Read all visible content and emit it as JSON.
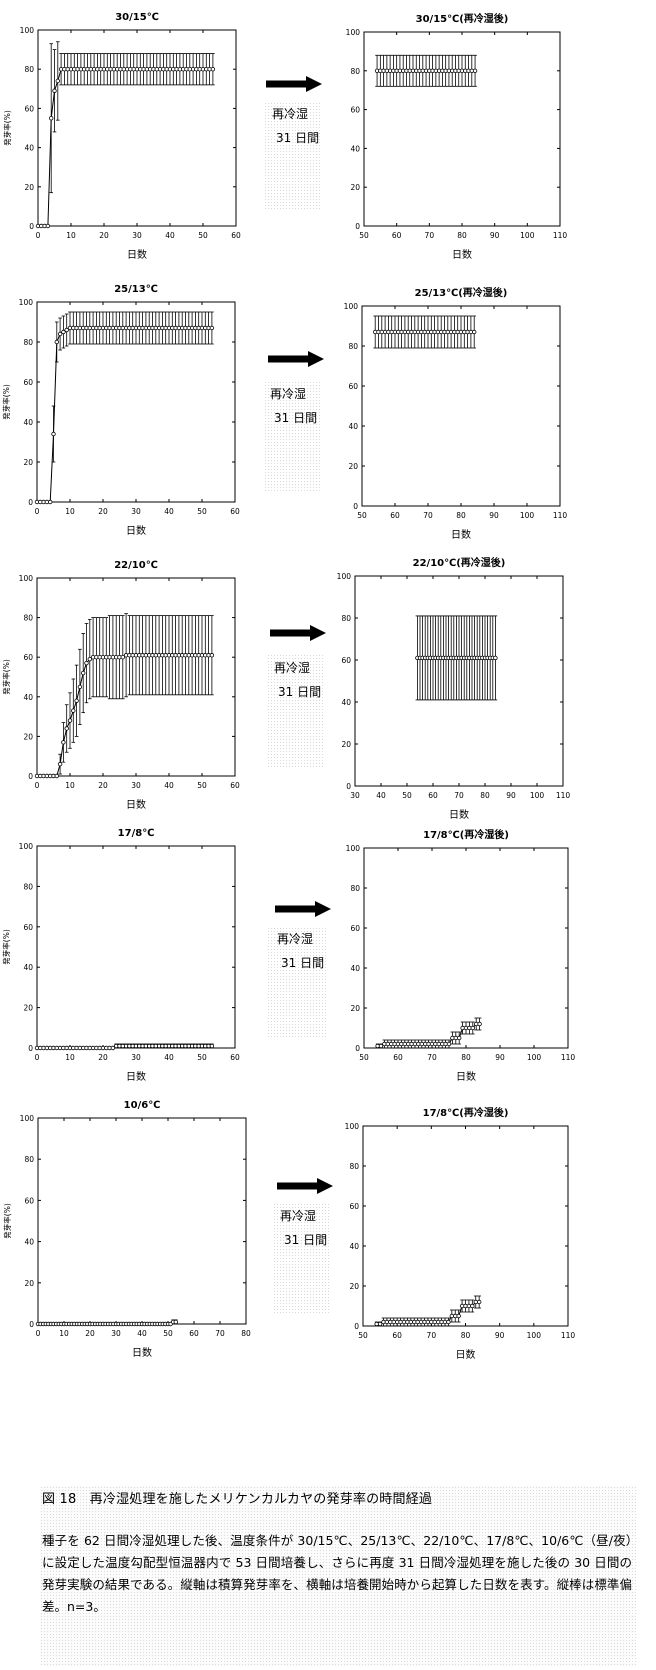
{
  "transition": {
    "label_line1": "再冷湿",
    "label_line2": "31 日間"
  },
  "caption": {
    "title": "図 18　再冷湿処理を施したメリケンカルカヤの発芽率の時間経過",
    "body": "種子を 62 日間冷湿処理した後、温度条件が 30/15℃、25/13℃、22/10℃、17/8℃、10/6℃（昼/夜）に設定した温度勾配型恒温器内で 53 日間培養し、さらに再度 31 日間冷湿処理を施した後の 30 日間の発芽実験の結果である。縦軸は積算発芽率を、横軸は培養開始時から起算した日数を表す。縦棒は標準偏差。n=3。"
  },
  "chart_data": [
    {
      "type": "line",
      "title": "30/15℃",
      "xlabel": "日数",
      "ylabel": "発芽率(%)",
      "xlim": [
        0,
        60
      ],
      "ylim": [
        0,
        100
      ],
      "xticks": [
        0,
        10,
        20,
        30,
        40,
        50,
        60
      ],
      "yticks": [
        0,
        20,
        40,
        60,
        80,
        100
      ],
      "x": [
        0,
        1,
        2,
        3,
        4,
        5,
        6,
        7,
        8,
        9,
        10,
        11,
        12,
        13,
        14,
        15,
        16,
        17,
        18,
        19,
        20,
        21,
        22,
        23,
        24,
        25,
        26,
        27,
        28,
        29,
        30,
        31,
        32,
        33,
        34,
        35,
        36,
        37,
        38,
        39,
        40,
        41,
        42,
        43,
        44,
        45,
        46,
        47,
        48,
        49,
        50,
        51,
        52,
        53
      ],
      "y": [
        0,
        0,
        0,
        0,
        55,
        69,
        74,
        80,
        80,
        80,
        80,
        80,
        80,
        80,
        80,
        80,
        80,
        80,
        80,
        80,
        80,
        80,
        80,
        80,
        80,
        80,
        80,
        80,
        80,
        80,
        80,
        80,
        80,
        80,
        80,
        80,
        80,
        80,
        80,
        80,
        80,
        80,
        80,
        80,
        80,
        80,
        80,
        80,
        80,
        80,
        80,
        80,
        80,
        80
      ],
      "err": [
        0,
        0,
        0,
        0,
        38,
        21,
        20,
        8,
        8,
        8,
        8,
        8,
        8,
        8,
        8,
        8,
        8,
        8,
        8,
        8,
        8,
        8,
        8,
        8,
        8,
        8,
        8,
        8,
        8,
        8,
        8,
        8,
        8,
        8,
        8,
        8,
        8,
        8,
        8,
        8,
        8,
        8,
        8,
        8,
        8,
        8,
        8,
        8,
        8,
        8,
        8,
        8,
        8,
        8
      ]
    },
    {
      "type": "line",
      "title": "30/15℃(再冷湿後)",
      "xlabel": "日数",
      "ylabel": "",
      "xlim": [
        50,
        110
      ],
      "ylim": [
        0,
        100
      ],
      "xticks": [
        50,
        60,
        70,
        80,
        90,
        100,
        110
      ],
      "yticks": [
        0,
        20,
        40,
        60,
        80,
        100
      ],
      "x": [
        54,
        55,
        56,
        57,
        58,
        59,
        60,
        61,
        62,
        63,
        64,
        65,
        66,
        67,
        68,
        69,
        70,
        71,
        72,
        73,
        74,
        75,
        76,
        77,
        78,
        79,
        80,
        81,
        82,
        83,
        84
      ],
      "y": [
        80,
        80,
        80,
        80,
        80,
        80,
        80,
        80,
        80,
        80,
        80,
        80,
        80,
        80,
        80,
        80,
        80,
        80,
        80,
        80,
        80,
        80,
        80,
        80,
        80,
        80,
        80,
        80,
        80,
        80,
        80
      ],
      "err": [
        8,
        8,
        8,
        8,
        8,
        8,
        8,
        8,
        8,
        8,
        8,
        8,
        8,
        8,
        8,
        8,
        8,
        8,
        8,
        8,
        8,
        8,
        8,
        8,
        8,
        8,
        8,
        8,
        8,
        8,
        8
      ]
    },
    {
      "type": "line",
      "title": "25/13℃",
      "xlabel": "日数",
      "ylabel": "発芽率(%)",
      "xlim": [
        0,
        60
      ],
      "ylim": [
        0,
        100
      ],
      "xticks": [
        0,
        10,
        20,
        30,
        40,
        50,
        60
      ],
      "yticks": [
        0,
        20,
        40,
        60,
        80,
        100
      ],
      "x": [
        0,
        1,
        2,
        3,
        4,
        5,
        6,
        7,
        8,
        9,
        10,
        11,
        12,
        13,
        14,
        15,
        16,
        17,
        18,
        19,
        20,
        21,
        22,
        23,
        24,
        25,
        26,
        27,
        28,
        29,
        30,
        31,
        32,
        33,
        34,
        35,
        36,
        37,
        38,
        39,
        40,
        41,
        42,
        43,
        44,
        45,
        46,
        47,
        48,
        49,
        50,
        51,
        52,
        53
      ],
      "y": [
        0,
        0,
        0,
        0,
        0,
        34,
        80,
        84,
        85,
        86,
        87,
        87,
        87,
        87,
        87,
        87,
        87,
        87,
        87,
        87,
        87,
        87,
        87,
        87,
        87,
        87,
        87,
        87,
        87,
        87,
        87,
        87,
        87,
        87,
        87,
        87,
        87,
        87,
        87,
        87,
        87,
        87,
        87,
        87,
        87,
        87,
        87,
        87,
        87,
        87,
        87,
        87,
        87,
        87
      ],
      "err": [
        0,
        0,
        0,
        0,
        0,
        14,
        10,
        8,
        8,
        8,
        8,
        8,
        8,
        8,
        8,
        8,
        8,
        8,
        8,
        8,
        8,
        8,
        8,
        8,
        8,
        8,
        8,
        8,
        8,
        8,
        8,
        8,
        8,
        8,
        8,
        8,
        8,
        8,
        8,
        8,
        8,
        8,
        8,
        8,
        8,
        8,
        8,
        8,
        8,
        8,
        8,
        8,
        8,
        8
      ]
    },
    {
      "type": "line",
      "title": "25/13℃(再冷湿後)",
      "xlabel": "日数",
      "ylabel": "",
      "xlim": [
        50,
        110
      ],
      "ylim": [
        0,
        100
      ],
      "xticks": [
        50,
        60,
        70,
        80,
        90,
        100,
        110
      ],
      "yticks": [
        0,
        20,
        40,
        60,
        80,
        100
      ],
      "x": [
        54,
        55,
        56,
        57,
        58,
        59,
        60,
        61,
        62,
        63,
        64,
        65,
        66,
        67,
        68,
        69,
        70,
        71,
        72,
        73,
        74,
        75,
        76,
        77,
        78,
        79,
        80,
        81,
        82,
        83,
        84
      ],
      "y": [
        87,
        87,
        87,
        87,
        87,
        87,
        87,
        87,
        87,
        87,
        87,
        87,
        87,
        87,
        87,
        87,
        87,
        87,
        87,
        87,
        87,
        87,
        87,
        87,
        87,
        87,
        87,
        87,
        87,
        87,
        87
      ],
      "err": [
        8,
        8,
        8,
        8,
        8,
        8,
        8,
        8,
        8,
        8,
        8,
        8,
        8,
        8,
        8,
        8,
        8,
        8,
        8,
        8,
        8,
        8,
        8,
        8,
        8,
        8,
        8,
        8,
        8,
        8,
        8
      ]
    },
    {
      "type": "line",
      "title": "22/10℃",
      "xlabel": "日数",
      "ylabel": "発芽率(%)",
      "xlim": [
        0,
        60
      ],
      "ylim": [
        0,
        100
      ],
      "xticks": [
        0,
        10,
        20,
        30,
        40,
        50,
        60
      ],
      "yticks": [
        0,
        20,
        40,
        60,
        80,
        100
      ],
      "x": [
        0,
        1,
        2,
        3,
        4,
        5,
        6,
        7,
        8,
        9,
        10,
        11,
        12,
        13,
        14,
        15,
        16,
        17,
        18,
        19,
        20,
        21,
        22,
        23,
        24,
        25,
        26,
        27,
        28,
        29,
        30,
        31,
        32,
        33,
        34,
        35,
        36,
        37,
        38,
        39,
        40,
        41,
        42,
        43,
        44,
        45,
        46,
        47,
        48,
        49,
        50,
        51,
        52,
        53
      ],
      "y": [
        0,
        0,
        0,
        0,
        0,
        0,
        0,
        6,
        17,
        24,
        28,
        33,
        38,
        45,
        52,
        57,
        59,
        60,
        60,
        60,
        60,
        60,
        60,
        60,
        60,
        60,
        60,
        61,
        61,
        61,
        61,
        61,
        61,
        61,
        61,
        61,
        61,
        61,
        61,
        61,
        61,
        61,
        61,
        61,
        61,
        61,
        61,
        61,
        61,
        61,
        61,
        61,
        61,
        61
      ],
      "err": [
        0,
        0,
        0,
        0,
        0,
        0,
        0,
        5,
        10,
        12,
        14,
        16,
        18,
        19,
        20,
        20,
        20,
        20,
        20,
        20,
        20,
        20,
        21,
        21,
        21,
        21,
        21,
        21,
        20,
        20,
        20,
        20,
        20,
        20,
        20,
        20,
        20,
        20,
        20,
        20,
        20,
        20,
        20,
        20,
        20,
        20,
        20,
        20,
        20,
        20,
        20,
        20,
        20,
        20
      ]
    },
    {
      "type": "line",
      "title": "22/10℃(再冷湿後)",
      "xlabel": "日数",
      "ylabel": "",
      "xlim": [
        30,
        110
      ],
      "ylim": [
        0,
        100
      ],
      "xticks": [
        30,
        40,
        50,
        60,
        70,
        80,
        90,
        100,
        110
      ],
      "yticks": [
        0,
        20,
        40,
        60,
        80,
        100
      ],
      "x": [
        54,
        55,
        56,
        57,
        58,
        59,
        60,
        61,
        62,
        63,
        64,
        65,
        66,
        67,
        68,
        69,
        70,
        71,
        72,
        73,
        74,
        75,
        76,
        77,
        78,
        79,
        80,
        81,
        82,
        83,
        84
      ],
      "y": [
        61,
        61,
        61,
        61,
        61,
        61,
        61,
        61,
        61,
        61,
        61,
        61,
        61,
        61,
        61,
        61,
        61,
        61,
        61,
        61,
        61,
        61,
        61,
        61,
        61,
        61,
        61,
        61,
        61,
        61,
        61
      ],
      "err": [
        20,
        20,
        20,
        20,
        20,
        20,
        20,
        20,
        20,
        20,
        20,
        20,
        20,
        20,
        20,
        20,
        20,
        20,
        20,
        20,
        20,
        20,
        20,
        20,
        20,
        20,
        20,
        20,
        20,
        20,
        20
      ]
    },
    {
      "type": "line",
      "title": "17/8℃",
      "xlabel": "日数",
      "ylabel": "発芽率(%)",
      "xlim": [
        0,
        60
      ],
      "ylim": [
        0,
        100
      ],
      "xticks": [
        0,
        10,
        20,
        30,
        40,
        50,
        60
      ],
      "yticks": [
        0,
        20,
        40,
        60,
        80,
        100
      ],
      "x": [
        0,
        1,
        2,
        3,
        4,
        5,
        6,
        7,
        8,
        9,
        10,
        11,
        12,
        13,
        14,
        15,
        16,
        17,
        18,
        19,
        20,
        21,
        22,
        23,
        24,
        25,
        26,
        27,
        28,
        29,
        30,
        31,
        32,
        33,
        34,
        35,
        36,
        37,
        38,
        39,
        40,
        41,
        42,
        43,
        44,
        45,
        46,
        47,
        48,
        49,
        50,
        51,
        52,
        53
      ],
      "y": [
        0,
        0,
        0,
        0,
        0,
        0,
        0,
        0,
        0,
        0,
        0,
        0,
        0,
        0,
        0,
        0,
        0,
        0,
        0,
        0,
        0,
        0,
        0,
        0,
        1,
        1,
        1,
        1,
        1,
        1,
        1,
        1,
        1,
        1,
        1,
        1,
        1,
        1,
        1,
        1,
        1,
        1,
        1,
        1,
        1,
        1,
        1,
        1,
        1,
        1,
        1,
        1,
        1,
        1
      ],
      "err": [
        0,
        0,
        0,
        0,
        0,
        0,
        0,
        0,
        0,
        0,
        0,
        0,
        0,
        0,
        0,
        0,
        0,
        0,
        0,
        0,
        0,
        0,
        0,
        0,
        1,
        1,
        1,
        1,
        1,
        1,
        1,
        1,
        1,
        1,
        1,
        1,
        1,
        1,
        1,
        1,
        1,
        1,
        1,
        1,
        1,
        1,
        1,
        1,
        1,
        1,
        1,
        1,
        1,
        1
      ]
    },
    {
      "type": "line",
      "title": "17/8℃(再冷湿後)",
      "xlabel": "日数",
      "ylabel": "",
      "xlim": [
        50,
        110
      ],
      "ylim": [
        0,
        100
      ],
      "xticks": [
        50,
        60,
        70,
        80,
        90,
        100,
        110
      ],
      "yticks": [
        0,
        20,
        40,
        60,
        80,
        100
      ],
      "x": [
        54,
        55,
        56,
        57,
        58,
        59,
        60,
        61,
        62,
        63,
        64,
        65,
        66,
        67,
        68,
        69,
        70,
        71,
        72,
        73,
        74,
        75,
        76,
        77,
        78,
        79,
        80,
        81,
        82,
        83,
        84
      ],
      "y": [
        1,
        1,
        2,
        2,
        2,
        2,
        2,
        2,
        2,
        2,
        2,
        2,
        2,
        2,
        2,
        2,
        2,
        2,
        2,
        2,
        2,
        2,
        5,
        5,
        5,
        10,
        10,
        10,
        10,
        12,
        12
      ],
      "err": [
        1,
        1,
        2,
        2,
        2,
        2,
        2,
        2,
        2,
        2,
        2,
        2,
        2,
        2,
        2,
        2,
        2,
        2,
        2,
        2,
        2,
        2,
        3,
        3,
        3,
        3,
        3,
        3,
        3,
        3,
        3
      ]
    },
    {
      "type": "line",
      "title": "10/6℃",
      "xlabel": "日数",
      "ylabel": "発芽率(%)",
      "xlim": [
        0,
        80
      ],
      "ylim": [
        0,
        100
      ],
      "xticks": [
        0,
        10,
        20,
        30,
        40,
        50,
        60,
        70,
        80
      ],
      "yticks": [
        0,
        20,
        40,
        60,
        80,
        100
      ],
      "x": [
        0,
        1,
        2,
        3,
        4,
        5,
        6,
        7,
        8,
        9,
        10,
        11,
        12,
        13,
        14,
        15,
        16,
        17,
        18,
        19,
        20,
        21,
        22,
        23,
        24,
        25,
        26,
        27,
        28,
        29,
        30,
        31,
        32,
        33,
        34,
        35,
        36,
        37,
        38,
        39,
        40,
        41,
        42,
        43,
        44,
        45,
        46,
        47,
        48,
        49,
        50,
        51,
        52,
        53
      ],
      "y": [
        0,
        0,
        0,
        0,
        0,
        0,
        0,
        0,
        0,
        0,
        0,
        0,
        0,
        0,
        0,
        0,
        0,
        0,
        0,
        0,
        0,
        0,
        0,
        0,
        0,
        0,
        0,
        0,
        0,
        0,
        0,
        0,
        0,
        0,
        0,
        0,
        0,
        0,
        0,
        0,
        0,
        0,
        0,
        0,
        0,
        0,
        0,
        0,
        0,
        0,
        0,
        0,
        1,
        1
      ],
      "err": [
        0,
        0,
        0,
        0,
        0,
        0,
        0,
        0,
        0,
        0,
        0,
        0,
        0,
        0,
        0,
        0,
        0,
        0,
        0,
        0,
        0,
        0,
        0,
        0,
        0,
        0,
        0,
        0,
        0,
        0,
        0,
        0,
        0,
        0,
        0,
        0,
        0,
        0,
        0,
        0,
        0,
        0,
        0,
        0,
        0,
        0,
        0,
        0,
        0,
        0,
        0,
        0,
        1,
        1
      ]
    },
    {
      "type": "line",
      "title": "17/8℃(再冷湿後)",
      "xlabel": "日数",
      "ylabel": "",
      "xlim": [
        50,
        110
      ],
      "ylim": [
        0,
        100
      ],
      "xticks": [
        50,
        60,
        70,
        80,
        90,
        100,
        110
      ],
      "yticks": [
        0,
        20,
        40,
        60,
        80,
        100
      ],
      "x": [
        54,
        55,
        56,
        57,
        58,
        59,
        60,
        61,
        62,
        63,
        64,
        65,
        66,
        67,
        68,
        69,
        70,
        71,
        72,
        73,
        74,
        75,
        76,
        77,
        78,
        79,
        80,
        81,
        82,
        83,
        84
      ],
      "y": [
        1,
        1,
        2,
        2,
        2,
        2,
        2,
        2,
        2,
        2,
        2,
        2,
        2,
        2,
        2,
        2,
        2,
        2,
        2,
        2,
        2,
        2,
        5,
        5,
        5,
        10,
        10,
        10,
        10,
        12,
        12
      ],
      "err": [
        1,
        1,
        2,
        2,
        2,
        2,
        2,
        2,
        2,
        2,
        2,
        2,
        2,
        2,
        2,
        2,
        2,
        2,
        2,
        2,
        2,
        2,
        3,
        3,
        3,
        3,
        3,
        3,
        3,
        3,
        3
      ]
    }
  ]
}
